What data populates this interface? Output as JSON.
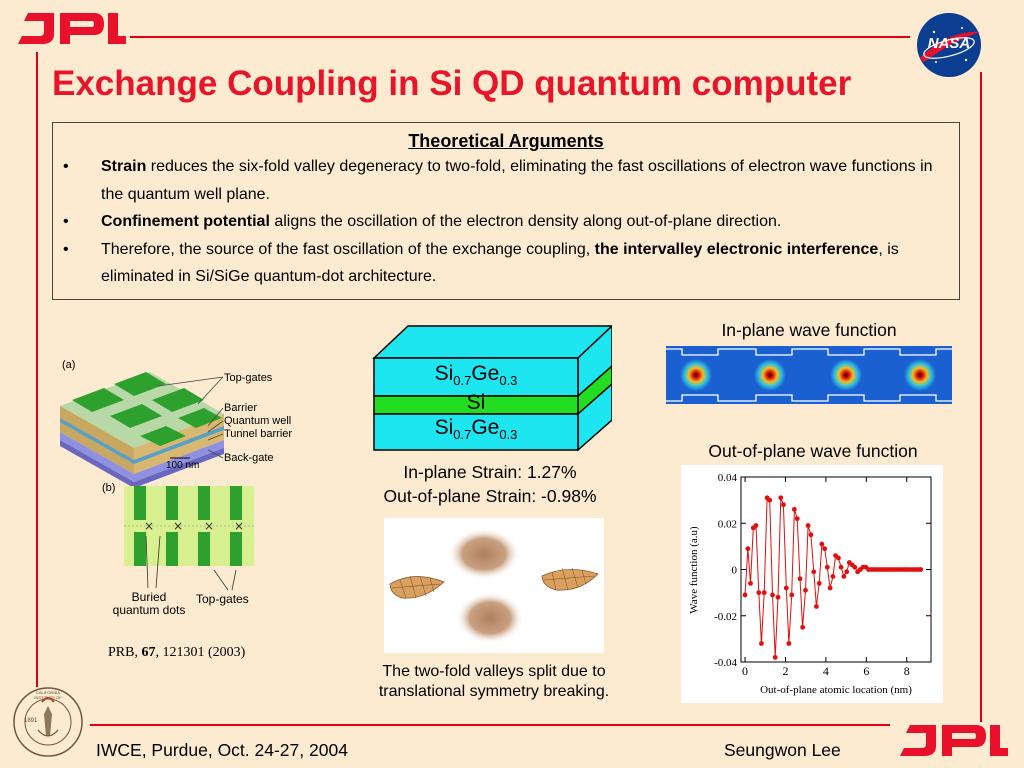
{
  "header": {
    "logo_text": "JPL",
    "nasa_text": "NASA"
  },
  "title": "Exchange Coupling in Si QD quantum computer",
  "arguments": {
    "heading": "Theoretical Arguments",
    "bullet": "•",
    "items": [
      {
        "bold": "Strain",
        "text": " reduces the six-fold valley degeneracy to two-fold, eliminating the fast oscillations of electron wave functions in the quantum well plane."
      },
      {
        "bold": "Confinement potential",
        "text": " aligns the oscillation of the electron density along out-of-plane direction."
      },
      {
        "pre": "Therefore, the source of the fast oscillation of the exchange coupling, ",
        "bold": "the intervalley electronic interference",
        "text": ", is eliminated in Si/SiGe quantum-dot architecture."
      }
    ]
  },
  "device_figure": {
    "label_a": "(a)",
    "label_b": "(b)",
    "top_gates": "Top-gates",
    "barrier": "Barrier",
    "quantum_well": "Quantum well",
    "tunnel_barrier": "Tunnel barrier",
    "back_gate": "Back-gate",
    "scale": "100 nm",
    "buried_dots": "Buried\nquantum dots",
    "top_gates_b": "Top-gates",
    "reference_pre": "PRB, ",
    "reference_vol": "67",
    "reference_post": ", 121301 (2003)"
  },
  "stack": {
    "top_layer": {
      "base": "Si",
      "sub1": "0.7",
      "mid": "Ge",
      "sub2": "0.3"
    },
    "middle_layer": "Si",
    "bottom_layer": {
      "base": "Si",
      "sub1": "0.7",
      "mid": "Ge",
      "sub2": "0.3"
    },
    "inplane_strain": "In-plane Strain: 1.27%",
    "outplane_strain": "Out-of-plane Strain: -0.98%",
    "colors": {
      "sige": "#1ee6f0",
      "si": "#22dd22"
    }
  },
  "valleys_caption": "The two-fold valleys split due to translational symmetry breaking.",
  "inplane_title": "In-plane wave function",
  "outplane_title": "Out-of-plane wave function",
  "chart_data": {
    "type": "line",
    "xlabel": "Out-of-plane atomic location (nm)",
    "ylabel": "Wave function (a.u)",
    "xlim": [
      -0.2,
      9.2
    ],
    "ylim": [
      -0.04,
      0.04
    ],
    "xticks": [
      0,
      2,
      4,
      6,
      8
    ],
    "yticks": [
      -0.04,
      -0.02,
      0,
      0.02,
      0.04
    ],
    "xtick_labels": [
      "0",
      "2",
      "4",
      "6",
      "8"
    ],
    "ytick_labels": [
      "-0.04",
      "-0.02",
      "0",
      "0.02",
      "0.04"
    ],
    "color": "#e01010",
    "x": [
      0.0,
      0.14,
      0.27,
      0.41,
      0.54,
      0.68,
      0.81,
      0.95,
      1.09,
      1.22,
      1.36,
      1.49,
      1.63,
      1.77,
      1.9,
      2.04,
      2.17,
      2.31,
      2.44,
      2.58,
      2.72,
      2.85,
      2.99,
      3.12,
      3.26,
      3.4,
      3.53,
      3.67,
      3.8,
      3.94,
      4.07,
      4.21,
      4.35,
      4.48,
      4.62,
      4.75,
      4.89,
      5.03,
      5.16,
      5.3,
      5.43,
      5.57,
      5.7,
      5.84,
      5.98,
      6.11,
      6.25,
      6.38,
      6.52,
      6.66,
      6.79,
      6.93,
      7.06,
      7.2,
      7.33,
      7.47,
      7.61,
      7.74,
      7.88,
      8.01,
      8.15,
      8.29,
      8.42,
      8.56,
      8.69
    ],
    "y": [
      -0.011,
      0.009,
      -0.006,
      0.018,
      0.019,
      -0.01,
      -0.032,
      -0.01,
      0.031,
      0.03,
      -0.011,
      -0.038,
      -0.012,
      0.031,
      0.028,
      -0.008,
      -0.032,
      -0.011,
      0.026,
      0.022,
      -0.004,
      -0.025,
      -0.009,
      0.019,
      0.015,
      -0.001,
      -0.016,
      -0.006,
      0.011,
      0.009,
      0.001,
      -0.008,
      -0.003,
      0.006,
      0.005,
      0.001,
      -0.003,
      -0.001,
      0.003,
      0.002,
      0.001,
      -0.001,
      0.0,
      0.001,
      0.001,
      0.0,
      0.0,
      0.0,
      0.0,
      0.0,
      0.0,
      0.0,
      0.0,
      0.0,
      0.0,
      0.0,
      0.0,
      0.0,
      0.0,
      0.0,
      0.0,
      0.0,
      0.0,
      0.0,
      0.0
    ]
  },
  "footer": {
    "event": "IWCE, Purdue, Oct. 24-27, 2004",
    "author": "Seungwon Lee",
    "seal_text": "CALIFORNIA INSTITUTE OF TECHNOLOGY",
    "seal_year": "1891"
  }
}
